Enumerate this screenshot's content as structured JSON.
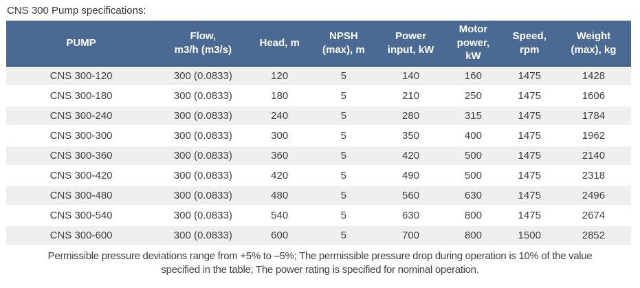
{
  "title": "CNS 300 Pump specifications:",
  "colors": {
    "header_bg": "#4a6a94",
    "header_border": "#3d5878",
    "stripe_row": "#efefef",
    "text": "#3f3f3f"
  },
  "table": {
    "columns": [
      {
        "key": "pump",
        "label": "PUMP"
      },
      {
        "key": "flow",
        "label": "Flow,\nm3/h (m3/s)"
      },
      {
        "key": "head",
        "label": "Head, m"
      },
      {
        "key": "npsh",
        "label": "NPSH\n(max), m"
      },
      {
        "key": "power_input",
        "label": "Power\ninput, kW"
      },
      {
        "key": "motor_power",
        "label": "Motor\npower,\nkW"
      },
      {
        "key": "speed",
        "label": "Speed,\nrpm"
      },
      {
        "key": "weight",
        "label": "Weight\n(max), kg"
      }
    ],
    "rows": [
      [
        "CNS 300-120",
        "300 (0.0833)",
        "120",
        "5",
        "140",
        "160",
        "1475",
        "1428"
      ],
      [
        "CNS 300-180",
        "300 (0.0833)",
        "180",
        "5",
        "210",
        "250",
        "1475",
        "1606"
      ],
      [
        "CNS 300-240",
        "300 (0.0833)",
        "240",
        "5",
        "280",
        "315",
        "1475",
        "1784"
      ],
      [
        "CNS 300-300",
        "300 (0.0833)",
        "300",
        "5",
        "350",
        "400",
        "1475",
        "1962"
      ],
      [
        "CNS 300-360",
        "300 (0.0833)",
        "360",
        "5",
        "420",
        "500",
        "1475",
        "2140"
      ],
      [
        "CNS 300-420",
        "300 (0.0833)",
        "420",
        "5",
        "490",
        "500",
        "1475",
        "2318"
      ],
      [
        "CNS 300-480",
        "300 (0.0833)",
        "480",
        "5",
        "560",
        "630",
        "1475",
        "2496"
      ],
      [
        "CNS 300-540",
        "300 (0.0833)",
        "540",
        "5",
        "630",
        "800",
        "1475",
        "2674"
      ],
      [
        "CNS 300-600",
        "300 (0.0833)",
        "600",
        "5",
        "700",
        "800",
        "1500",
        "2852"
      ]
    ]
  },
  "footer": {
    "line1": "Permissible pressure deviations range from +5% to –5%; The permissible pressure drop during operation is 10% of the value",
    "line2": "specified in the table; The power rating is specified for nominal operation."
  }
}
